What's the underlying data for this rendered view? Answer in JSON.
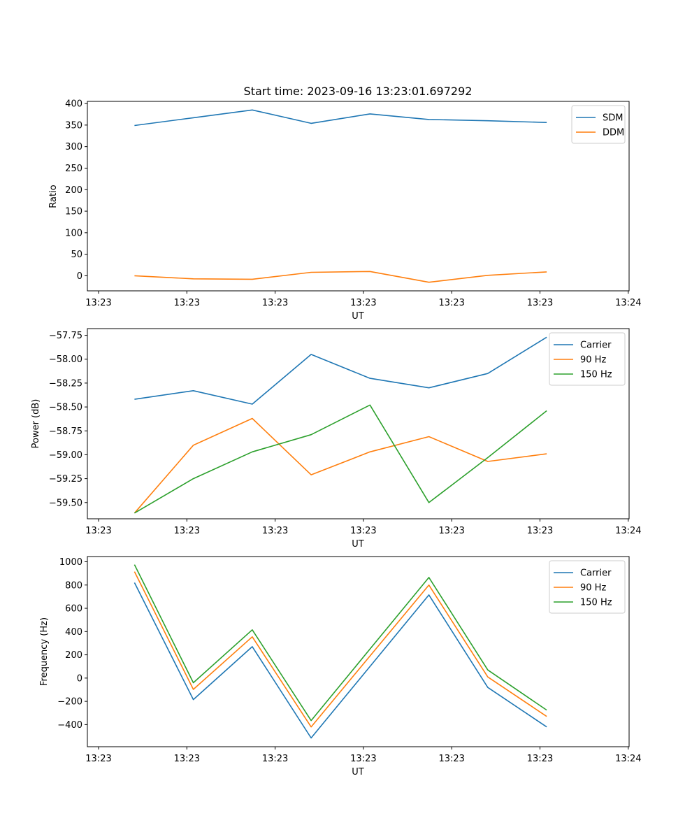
{
  "chart_data": [
    {
      "type": "line",
      "title": "Start time: 2023-09-16 13:23:01.697292",
      "xlabel": "UT",
      "ylabel": "Ratio",
      "x": [
        1,
        2,
        3,
        4,
        5,
        6,
        7,
        8
      ],
      "xlim": [
        0.2,
        9.4
      ],
      "xtick_labels": [
        "13:23",
        "13:23",
        "13:23",
        "13:23",
        "13:23",
        "13:23",
        "13:24"
      ],
      "ylim": [
        -35,
        405
      ],
      "yticks": [
        0,
        50,
        100,
        150,
        200,
        250,
        300,
        350,
        400
      ],
      "legend": "top-right",
      "series": [
        {
          "name": "SDM",
          "color": "#1f77b4",
          "values": [
            349,
            367,
            385,
            354,
            376,
            363,
            360,
            356
          ]
        },
        {
          "name": "DDM",
          "color": "#ff7f0e",
          "values": [
            0,
            -7,
            -8,
            8,
            10,
            -15,
            1,
            9
          ]
        }
      ]
    },
    {
      "type": "line",
      "title": "",
      "xlabel": "UT",
      "ylabel": "Power (dB)",
      "x": [
        1,
        2,
        3,
        4,
        5,
        6,
        7,
        8
      ],
      "xlim": [
        0.2,
        9.4
      ],
      "xtick_labels": [
        "13:23",
        "13:23",
        "13:23",
        "13:23",
        "13:23",
        "13:23",
        "13:24"
      ],
      "ylim": [
        -59.67,
        -57.68
      ],
      "yticks": [
        -59.5,
        -59.25,
        -59.0,
        -58.75,
        -58.5,
        -58.25,
        -58.0,
        -57.75
      ],
      "ytick_labels": [
        "−59.50",
        "−59.25",
        "−59.00",
        "−58.75",
        "−58.50",
        "−58.25",
        "−58.00",
        "−57.75"
      ],
      "legend": "top-right",
      "series": [
        {
          "name": "Carrier",
          "color": "#1f77b4",
          "values": [
            -58.42,
            -58.33,
            -58.47,
            -57.95,
            -58.2,
            -58.3,
            -58.15,
            -57.77
          ]
        },
        {
          "name": "90 Hz",
          "color": "#ff7f0e",
          "values": [
            -59.61,
            -58.9,
            -58.62,
            -59.21,
            -58.97,
            -58.81,
            -59.07,
            -58.99
          ]
        },
        {
          "name": "150 Hz",
          "color": "#2ca02c",
          "values": [
            -59.61,
            -59.25,
            -58.97,
            -58.79,
            -58.48,
            -59.5,
            -59.03,
            -58.54
          ]
        }
      ]
    },
    {
      "type": "line",
      "title": "",
      "xlabel": "UT",
      "ylabel": "Frequency (Hz)",
      "x": [
        1,
        2,
        3,
        4,
        5,
        6,
        7,
        8
      ],
      "xlim": [
        0.2,
        9.4
      ],
      "xtick_labels": [
        "13:23",
        "13:23",
        "13:23",
        "13:23",
        "13:23",
        "13:23",
        "13:24"
      ],
      "ylim": [
        -590,
        1045
      ],
      "yticks": [
        -400,
        -200,
        0,
        200,
        400,
        600,
        800,
        1000
      ],
      "ytick_labels": [
        "−400",
        "−200",
        "0",
        "200",
        "400",
        "600",
        "800",
        "1000"
      ],
      "legend": "top-right",
      "series": [
        {
          "name": "Carrier",
          "color": "#1f77b4",
          "values": [
            820,
            -185,
            270,
            -515,
            100,
            715,
            -80,
            -420
          ]
        },
        {
          "name": "90 Hz",
          "color": "#ff7f0e",
          "values": [
            915,
            -97,
            355,
            -420,
            190,
            800,
            10,
            -330
          ]
        },
        {
          "name": "150 Hz",
          "color": "#2ca02c",
          "values": [
            975,
            -40,
            415,
            -365,
            250,
            865,
            70,
            -275
          ]
        }
      ]
    }
  ]
}
